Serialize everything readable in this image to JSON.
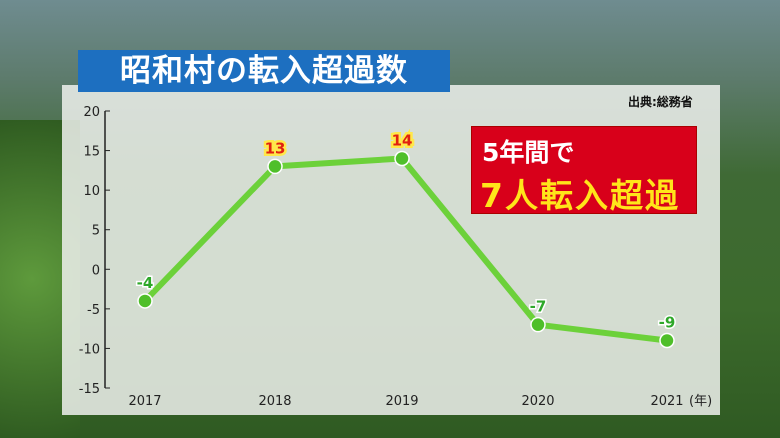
{
  "title": "昭和村の転入超過数",
  "source": "出典:総務省",
  "callout": {
    "line1": "5年間で",
    "line2": "7人転入超過"
  },
  "colors": {
    "line": "#6cd13a",
    "marker": "#4fbf2a",
    "title_bg": "#1d6fc0",
    "callout_bg": "#d8001a",
    "callout_highlight": "#ffe51a",
    "positive_label": "#ffe84a",
    "negative_label": "#2ea82a"
  },
  "chart_data": {
    "type": "line",
    "categories": [
      "2017",
      "2018",
      "2019",
      "2020",
      "2021"
    ],
    "x_unit": "(年)",
    "values": [
      -4,
      13,
      14,
      -7,
      -9
    ],
    "data_labels": [
      "-4",
      "13",
      "14",
      "-7",
      "-9"
    ],
    "ylim": [
      -15,
      20
    ],
    "yticks": [
      "20",
      "15",
      "10",
      "5",
      "0",
      "-5",
      "-10",
      "-15"
    ],
    "grid": false
  }
}
